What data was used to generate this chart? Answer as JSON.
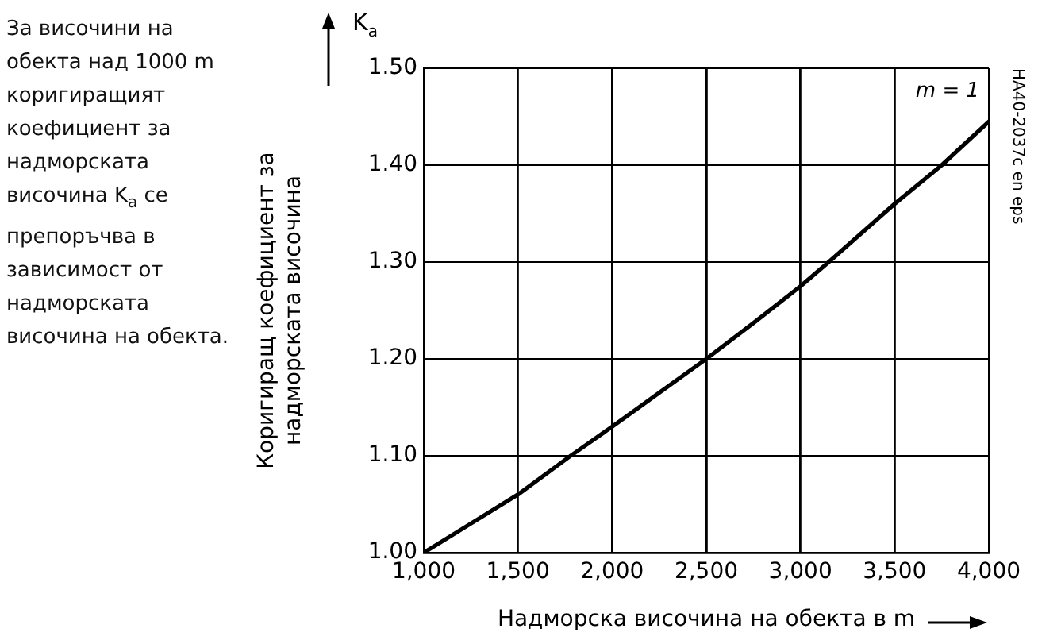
{
  "chart_data": {
    "type": "line",
    "xlabel": "Надморска височина на обекта в m",
    "ylabel": "Коригиращ коефициент за\nнадморската височина",
    "x": [
      1000,
      1250,
      1500,
      1780,
      2000,
      2250,
      2500,
      2750,
      3000,
      3150,
      3500,
      3750,
      4000
    ],
    "series": [
      {
        "color": "#000000",
        "values": [
          1.0,
          1.03,
          1.06,
          1.1,
          1.13,
          1.165,
          1.2,
          1.237,
          1.275,
          1.3,
          1.36,
          1.4,
          1.445
        ]
      }
    ],
    "xlim": [
      1000,
      4000
    ],
    "xticks": [
      {
        "value": 1000,
        "label": "1,000"
      },
      {
        "value": 1500,
        "label": "1,500"
      },
      {
        "value": 2000,
        "label": "2,000"
      },
      {
        "value": 2500,
        "label": "2,500"
      },
      {
        "value": 3000,
        "label": "3,000"
      },
      {
        "value": 3500,
        "label": "3,500"
      },
      {
        "value": 4000,
        "label": "4,000"
      }
    ],
    "ylim": [
      1.0,
      1.5
    ],
    "yticks": [
      {
        "value": 1.0,
        "label": "1.00"
      },
      {
        "value": 1.1,
        "label": "1.10"
      },
      {
        "value": 1.2,
        "label": "1.20"
      },
      {
        "value": 1.3,
        "label": "1.30"
      },
      {
        "value": 1.4,
        "label": "1.40"
      },
      {
        "value": 1.5,
        "label": "1.50"
      }
    ],
    "grid": true,
    "legend": false,
    "marker": "none",
    "line_style": "solid",
    "annotations": [
      "За височини на обекта над 1000 m коригиращият коефициент за надморската височина K$_{a}$ се препоръчва в зависимост от надморската височина на обекта.",
      "K$_{a}$",
      "HA40-2037c en eps",
      "m = 1"
    ]
  }
}
